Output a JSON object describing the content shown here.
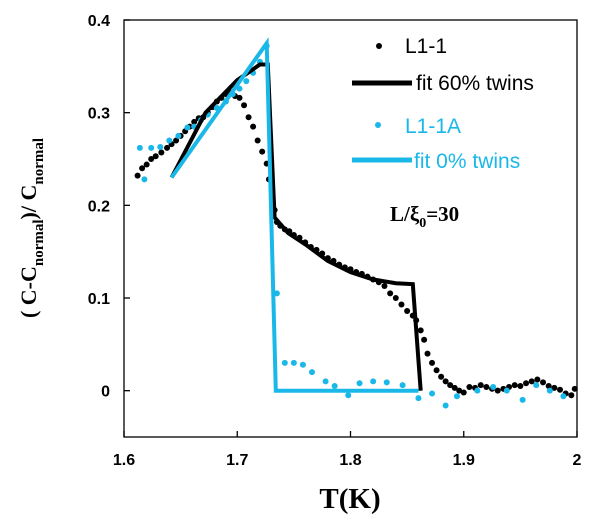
{
  "chart_data": {
    "type": "scatter",
    "xlabel": "T(K)",
    "ylabel": {
      "prefix": "( C-C",
      "sub1": "normal",
      "mid": ")/ C",
      "sub2": "normal"
    },
    "xlim": [
      1.6,
      2.0
    ],
    "ylim": [
      -0.05,
      0.4
    ],
    "x_ticks": [
      "1.6",
      "1.7",
      "1.8",
      "1.9",
      "2"
    ],
    "y_ticks": [
      "0",
      "0.1",
      "0.2",
      "0.3",
      "0.4"
    ],
    "x_tick_values": [
      1.6,
      1.7,
      1.8,
      1.9,
      2.0
    ],
    "y_tick_values": [
      0,
      0.1,
      0.2,
      0.3,
      0.4
    ],
    "legend_position": "top-right",
    "annotation": {
      "text_main": "L/ξ",
      "sub": "0",
      "text_tail": "=30"
    },
    "colors": {
      "black": "#000000",
      "cyan": "#1ab8e8"
    },
    "series": [
      {
        "name": "L1-1",
        "kind": "points",
        "color": "#000000",
        "points": [
          [
            1.612,
            0.232
          ],
          [
            1.616,
            0.24
          ],
          [
            1.62,
            0.244
          ],
          [
            1.624,
            0.25
          ],
          [
            1.628,
            0.253
          ],
          [
            1.633,
            0.257
          ],
          [
            1.638,
            0.262
          ],
          [
            1.642,
            0.266
          ],
          [
            1.646,
            0.27
          ],
          [
            1.65,
            0.275
          ],
          [
            1.654,
            0.28
          ],
          [
            1.658,
            0.285
          ],
          [
            1.662,
            0.29
          ],
          [
            1.666,
            0.294
          ],
          [
            1.67,
            0.295
          ],
          [
            1.674,
            0.3
          ],
          [
            1.678,
            0.306
          ],
          [
            1.682,
            0.312
          ],
          [
            1.686,
            0.316
          ],
          [
            1.69,
            0.32
          ],
          [
            1.694,
            0.322
          ],
          [
            1.698,
            0.318
          ],
          [
            1.702,
            0.316
          ],
          [
            1.706,
            0.308
          ],
          [
            1.71,
            0.295
          ],
          [
            1.714,
            0.285
          ],
          [
            1.718,
            0.27
          ],
          [
            1.722,
            0.258
          ],
          [
            1.726,
            0.245
          ],
          [
            1.728,
            0.228
          ],
          [
            1.731,
            0.21
          ],
          [
            1.733,
            0.195
          ],
          [
            1.735,
            0.182
          ],
          [
            1.738,
            0.178
          ],
          [
            1.742,
            0.174
          ],
          [
            1.746,
            0.172
          ],
          [
            1.75,
            0.168
          ],
          [
            1.755,
            0.165
          ],
          [
            1.76,
            0.16
          ],
          [
            1.765,
            0.155
          ],
          [
            1.77,
            0.152
          ],
          [
            1.775,
            0.148
          ],
          [
            1.78,
            0.143
          ],
          [
            1.785,
            0.14
          ],
          [
            1.79,
            0.136
          ],
          [
            1.795,
            0.133
          ],
          [
            1.8,
            0.131
          ],
          [
            1.805,
            0.128
          ],
          [
            1.81,
            0.126
          ],
          [
            1.815,
            0.123
          ],
          [
            1.82,
            0.12
          ],
          [
            1.825,
            0.117
          ],
          [
            1.83,
            0.113
          ],
          [
            1.835,
            0.105
          ],
          [
            1.84,
            0.1
          ],
          [
            1.845,
            0.093
          ],
          [
            1.85,
            0.086
          ],
          [
            1.855,
            0.081
          ],
          [
            1.858,
            0.076
          ],
          [
            1.862,
            0.065
          ],
          [
            1.865,
            0.055
          ],
          [
            1.868,
            0.04
          ],
          [
            1.872,
            0.03
          ],
          [
            1.876,
            0.022
          ],
          [
            1.88,
            0.015
          ],
          [
            1.884,
            0.01
          ],
          [
            1.888,
            0.006
          ],
          [
            1.892,
            0.003
          ],
          [
            1.896,
            0.0
          ],
          [
            1.9,
            -0.002
          ],
          [
            1.905,
            0.004
          ],
          [
            1.91,
            0.003
          ],
          [
            1.915,
            0.006
          ],
          [
            1.92,
            0.004
          ],
          [
            1.925,
            0.002
          ],
          [
            1.93,
            0.0
          ],
          [
            1.935,
            0.002
          ],
          [
            1.94,
            0.004
          ],
          [
            1.945,
            0.006
          ],
          [
            1.95,
            0.005
          ],
          [
            1.955,
            0.008
          ],
          [
            1.96,
            0.01
          ],
          [
            1.965,
            0.012
          ],
          [
            1.97,
            0.009
          ],
          [
            1.975,
            0.005
          ],
          [
            1.98,
            0.003
          ],
          [
            1.985,
            0.001
          ],
          [
            1.99,
            -0.003
          ],
          [
            1.995,
            -0.005
          ],
          [
            1.998,
            0.002
          ]
        ]
      },
      {
        "name": "fit 60% twins",
        "kind": "line",
        "color": "#000000",
        "points": [
          [
            1.642,
            0.23
          ],
          [
            1.672,
            0.3
          ],
          [
            1.7,
            0.335
          ],
          [
            1.72,
            0.352
          ],
          [
            1.727,
            0.352
          ],
          [
            1.733,
            0.187
          ],
          [
            1.745,
            0.17
          ],
          [
            1.76,
            0.158
          ],
          [
            1.78,
            0.14
          ],
          [
            1.8,
            0.128
          ],
          [
            1.82,
            0.12
          ],
          [
            1.84,
            0.116
          ],
          [
            1.855,
            0.115
          ],
          [
            1.862,
            0.0
          ]
        ]
      },
      {
        "name": "L1-1A",
        "kind": "points",
        "color": "#1ab8e8",
        "points": [
          [
            1.614,
            0.262
          ],
          [
            1.618,
            0.228
          ],
          [
            1.624,
            0.262
          ],
          [
            1.632,
            0.263
          ],
          [
            1.64,
            0.27
          ],
          [
            1.648,
            0.275
          ],
          [
            1.656,
            0.284
          ],
          [
            1.662,
            0.285
          ],
          [
            1.668,
            0.292
          ],
          [
            1.674,
            0.298
          ],
          [
            1.682,
            0.305
          ],
          [
            1.69,
            0.312
          ],
          [
            1.696,
            0.32
          ],
          [
            1.702,
            0.326
          ],
          [
            1.708,
            0.334
          ],
          [
            1.714,
            0.343
          ],
          [
            1.72,
            0.355
          ],
          [
            1.726,
            0.372
          ],
          [
            1.735,
            0.105
          ],
          [
            1.742,
            0.03
          ],
          [
            1.75,
            0.03
          ],
          [
            1.758,
            0.028
          ],
          [
            1.766,
            0.02
          ],
          [
            1.778,
            0.01
          ],
          [
            1.786,
            0.005
          ],
          [
            1.798,
            -0.005
          ],
          [
            1.808,
            0.008
          ],
          [
            1.82,
            0.01
          ],
          [
            1.832,
            0.009
          ],
          [
            1.846,
            0.006
          ],
          [
            1.86,
            -0.008
          ],
          [
            1.872,
            -0.003
          ],
          [
            1.884,
            -0.016
          ],
          [
            1.894,
            -0.006
          ],
          [
            1.912,
            0.0
          ],
          [
            1.926,
            0.004
          ],
          [
            1.938,
            0.0
          ],
          [
            1.952,
            -0.01
          ],
          [
            1.964,
            0.006
          ],
          [
            1.976,
            0.0
          ],
          [
            1.988,
            -0.006
          ]
        ]
      },
      {
        "name": "fit 0% twins",
        "kind": "line",
        "color": "#1ab8e8",
        "points": [
          [
            1.642,
            0.23
          ],
          [
            1.726,
            0.375
          ],
          [
            1.734,
            0.0
          ],
          [
            1.8,
            0.0
          ],
          [
            1.86,
            0.0
          ]
        ]
      }
    ]
  }
}
